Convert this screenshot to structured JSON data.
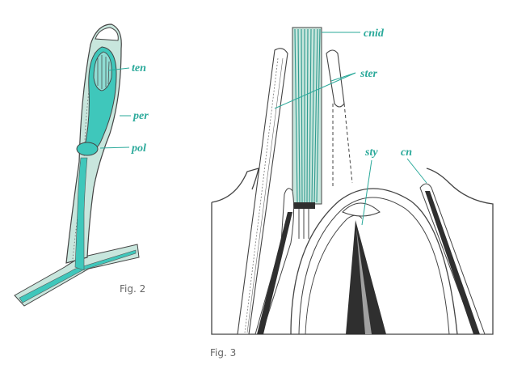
{
  "figure2": {
    "caption": "Fig. 2",
    "labels": {
      "ten": "ten",
      "per": "per",
      "pol": "pol"
    }
  },
  "figure3": {
    "caption": "Fig. 3",
    "labels": {
      "cnid": "cnid",
      "ster": "ster",
      "sty": "sty",
      "cn": "cn"
    }
  },
  "colors": {
    "accent": "#2aa99a",
    "fill_light": "#c8e6dd",
    "fill_bright": "#3fc7bb",
    "ink": "#333333",
    "dark": "#2f2f2f"
  }
}
